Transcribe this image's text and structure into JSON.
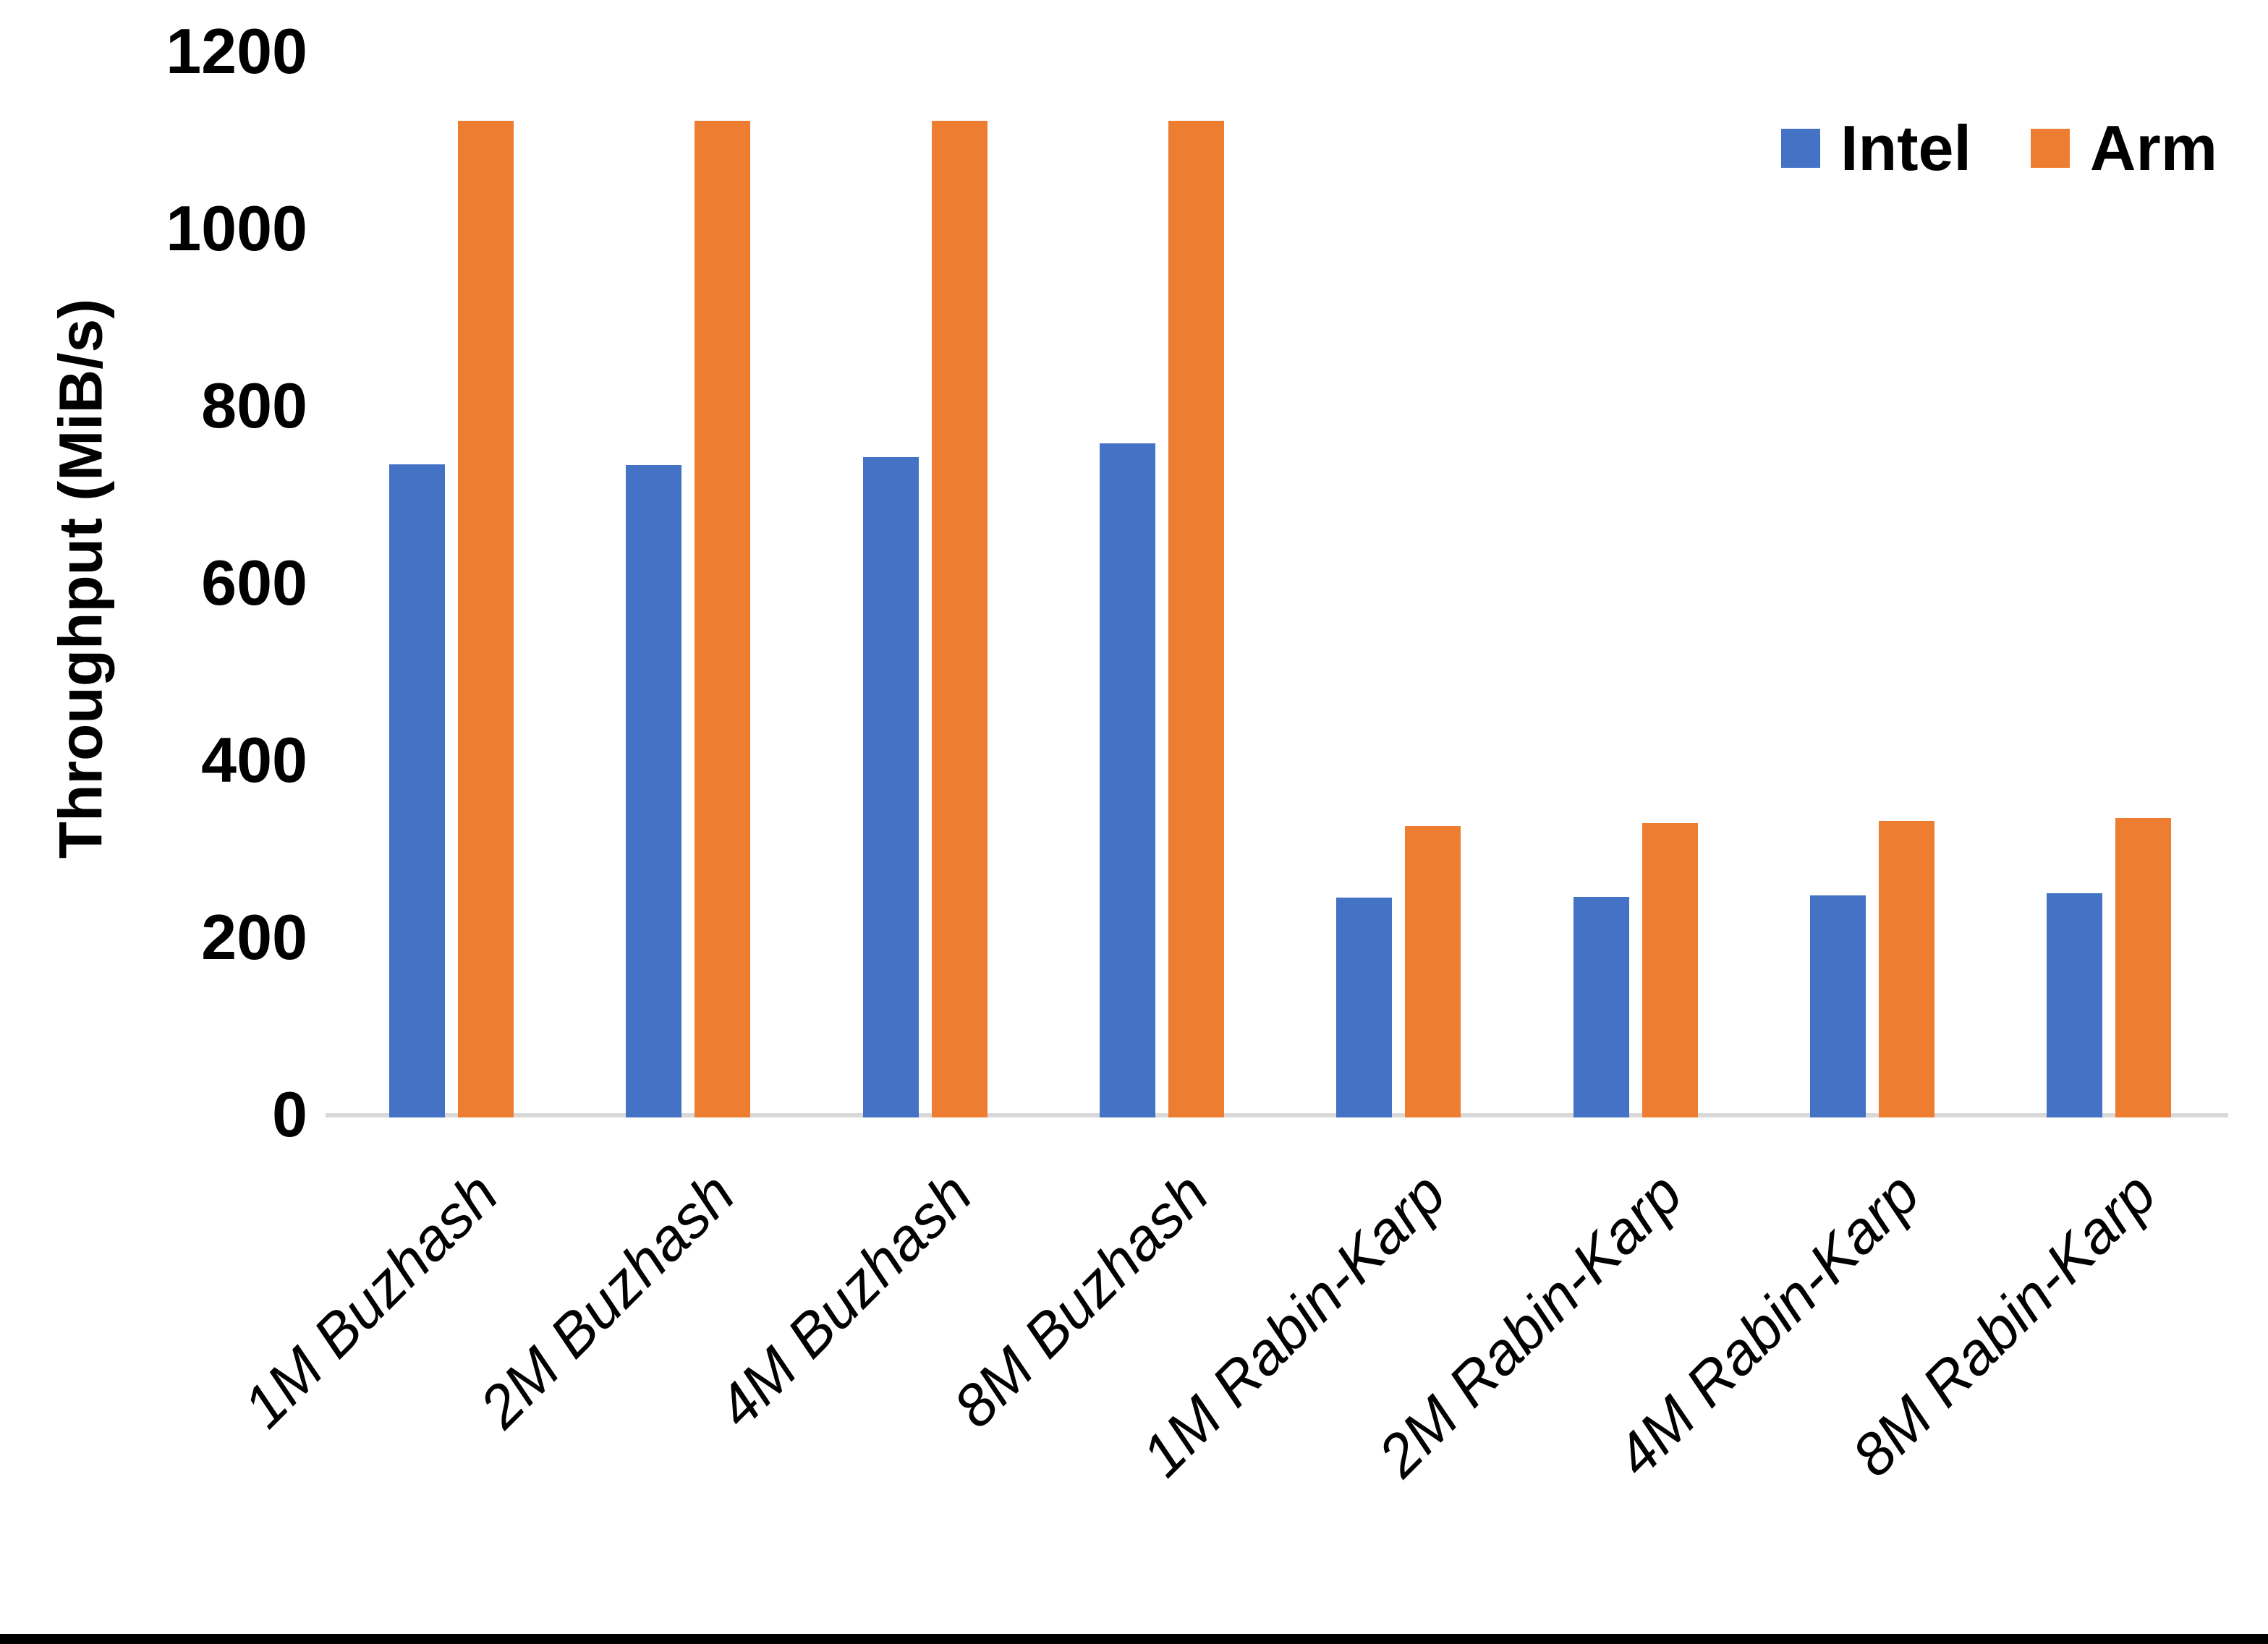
{
  "chart_data": {
    "type": "bar",
    "title": "",
    "ylabel": "Throughput (MiB/s)",
    "xlabel": "",
    "ylim": [
      0,
      1200
    ],
    "ytick_step": 200,
    "grid": false,
    "legend_position": "top-right",
    "categories": [
      "1M Buzhash",
      "2M Buzhash",
      "4M Buzhash",
      "8M Buzhash",
      "1M Rabin-Karp",
      "2M Rabin-Karp",
      "4M Rabin-Karp",
      "8M Rabin-Karp"
    ],
    "series": [
      {
        "name": "Intel",
        "color": "#4472C4",
        "values": [
          737,
          736,
          745,
          761,
          248,
          249,
          251,
          253
        ]
      },
      {
        "name": "Arm",
        "color": "#ED7D31",
        "values": [
          1125,
          1125,
          1125,
          1125,
          329,
          332,
          335,
          338
        ]
      }
    ]
  },
  "colors": {
    "background": "#FFFFFF",
    "axis_line": "#D9D9D9",
    "text": "#000000",
    "bottom_border": "#000000",
    "intel": "#4472C4",
    "arm": "#ED7D31"
  }
}
